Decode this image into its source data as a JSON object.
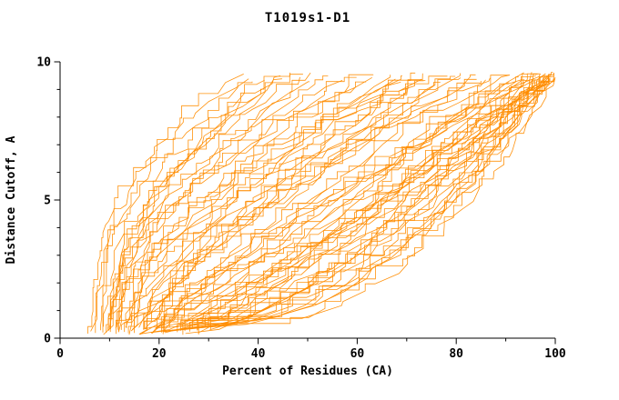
{
  "chart_data": {
    "type": "line",
    "title": "T1019s1-D1",
    "xlabel": "Percent of Residues (CA)",
    "ylabel": "Distance Cutoff, A",
    "xlim": [
      0,
      100
    ],
    "ylim": [
      0,
      10
    ],
    "x_major_ticks": [
      0,
      20,
      40,
      60,
      80,
      100
    ],
    "x_minor_step": 10,
    "y_major_ticks": [
      0,
      5,
      10
    ],
    "y_minor_step": 1,
    "grid": false,
    "legend": "none",
    "line_color": "#ff8c00",
    "axis_color": "#000000",
    "jitter_seed": 20190601,
    "curve_y_start": 0.2,
    "curve_y_end": 9.5,
    "curves": [
      [
        6,
        36,
        2.4
      ],
      [
        7,
        40,
        2.2
      ],
      [
        8,
        38,
        2.6
      ],
      [
        9,
        44,
        2.0
      ],
      [
        7,
        46,
        2.3
      ],
      [
        10,
        42,
        1.9
      ],
      [
        8,
        50,
        2.1
      ],
      [
        11,
        48,
        2.4
      ],
      [
        9,
        52,
        1.8
      ],
      [
        12,
        45,
        2.2
      ],
      [
        10,
        55,
        2.0
      ],
      [
        13,
        50,
        1.7
      ],
      [
        8,
        58,
        1.6
      ],
      [
        10,
        60,
        1.8
      ],
      [
        12,
        62,
        1.5
      ],
      [
        14,
        65,
        1.9
      ],
      [
        9,
        68,
        1.4
      ],
      [
        11,
        70,
        1.7
      ],
      [
        13,
        72,
        1.6
      ],
      [
        15,
        75,
        1.3
      ],
      [
        10,
        64,
        2.0
      ],
      [
        12,
        66,
        1.2
      ],
      [
        16,
        70,
        1.5
      ],
      [
        18,
        74,
        1.4
      ],
      [
        14,
        78,
        1.6
      ],
      [
        16,
        80,
        1.2
      ],
      [
        11,
        76,
        1.8
      ],
      [
        13,
        82,
        1.5
      ],
      [
        17,
        84,
        1.3
      ],
      [
        19,
        78,
        1.1
      ],
      [
        15,
        85,
        1.4
      ],
      [
        20,
        80,
        1.6
      ],
      [
        12,
        74,
        1.0
      ],
      [
        22,
        86,
        1.2
      ],
      [
        18,
        88,
        1.5
      ],
      [
        21,
        90,
        1.3
      ],
      [
        14,
        92,
        1.0
      ],
      [
        16,
        94,
        0.9
      ],
      [
        18,
        96,
        1.1
      ],
      [
        20,
        98,
        0.8
      ],
      [
        22,
        99,
        1.0
      ],
      [
        24,
        100,
        0.9
      ],
      [
        15,
        90,
        0.8
      ],
      [
        17,
        95,
        0.7
      ],
      [
        19,
        97,
        1.2
      ],
      [
        21,
        99,
        0.7
      ],
      [
        23,
        96,
        0.85
      ],
      [
        25,
        98,
        0.95
      ],
      [
        26,
        100,
        0.8
      ],
      [
        28,
        99,
        0.9
      ],
      [
        30,
        100,
        0.75
      ],
      [
        16,
        88,
        0.7
      ],
      [
        18,
        92,
        0.65
      ],
      [
        20,
        94,
        1.05
      ],
      [
        27,
        97,
        0.7
      ],
      [
        29,
        100,
        0.85
      ],
      [
        24,
        95,
        0.6
      ],
      [
        22,
        93,
        1.1
      ],
      [
        26,
        99,
        0.65
      ],
      [
        28,
        98,
        1.0
      ],
      [
        18,
        97,
        0.5
      ],
      [
        20,
        99,
        0.45
      ],
      [
        22,
        100,
        0.5
      ],
      [
        25,
        98,
        0.55
      ],
      [
        28,
        100,
        0.4
      ],
      [
        30,
        99,
        0.5
      ],
      [
        24,
        100,
        0.45
      ],
      [
        26,
        97,
        0.6
      ],
      [
        21,
        98,
        0.4
      ],
      [
        23,
        100,
        0.55
      ],
      [
        29,
        98,
        0.5
      ],
      [
        27,
        99,
        0.42
      ]
    ]
  }
}
